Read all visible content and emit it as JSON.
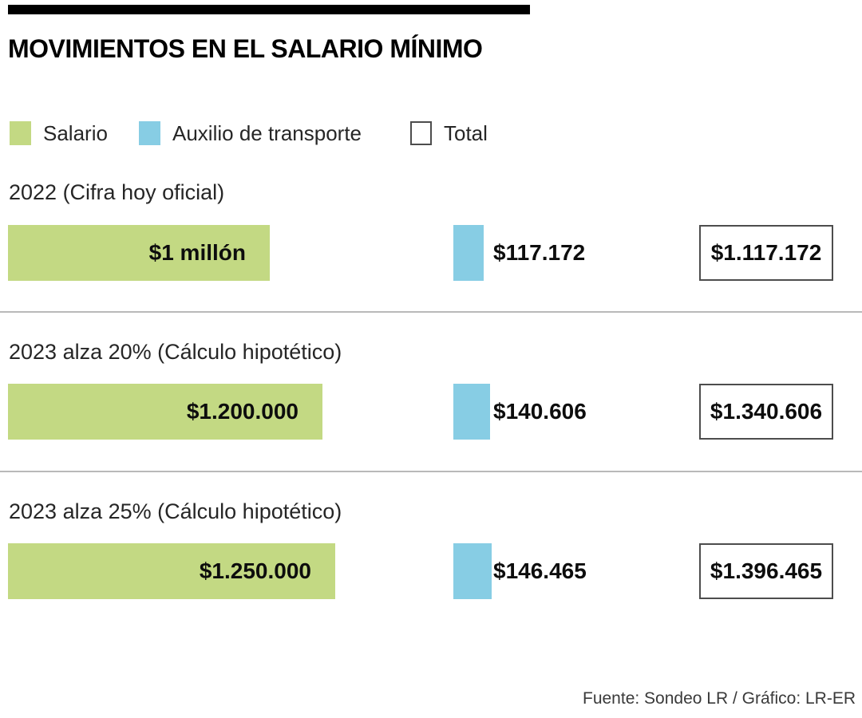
{
  "title": "MOVIMIENTOS EN EL SALARIO MÍNIMO",
  "legend": {
    "salario_label": "Salario",
    "auxilio_label": "Auxilio de transporte",
    "total_label": "Total"
  },
  "colors": {
    "salario": "#c3d983",
    "auxilio": "#87cde4",
    "total_border": "#4d4d4d",
    "divider": "#b9b9b9",
    "header_bar": "#000000"
  },
  "footer": "Fuente: Sondeo LR  / Gráfico: LR-ER",
  "chart_data": {
    "type": "bar",
    "orientation": "horizontal",
    "unit": "COP ($)",
    "legend_position": "top",
    "grid": false,
    "series_names": [
      "Salario",
      "Auxilio de transporte",
      "Total"
    ],
    "rows": [
      {
        "label": "2022 (Cifra hoy oficial)",
        "salario": 1000000,
        "salario_label": "$1 millón",
        "auxilio": 117172,
        "auxilio_label": "$117.172",
        "total": 1117172,
        "total_label": "$1.117.172"
      },
      {
        "label": "2023 alza 20% (Cálculo hipotético)",
        "salario": 1200000,
        "salario_label": "$1.200.000",
        "auxilio": 140606,
        "auxilio_label": "$140.606",
        "total": 1340606,
        "total_label": "$1.340.606"
      },
      {
        "label": "2023 alza 25% (Cálculo hipotético)",
        "salario": 1250000,
        "salario_label": "$1.250.000",
        "auxilio": 146465,
        "auxilio_label": "$146.465",
        "total": 1396465,
        "total_label": "$1.396.465"
      }
    ]
  }
}
